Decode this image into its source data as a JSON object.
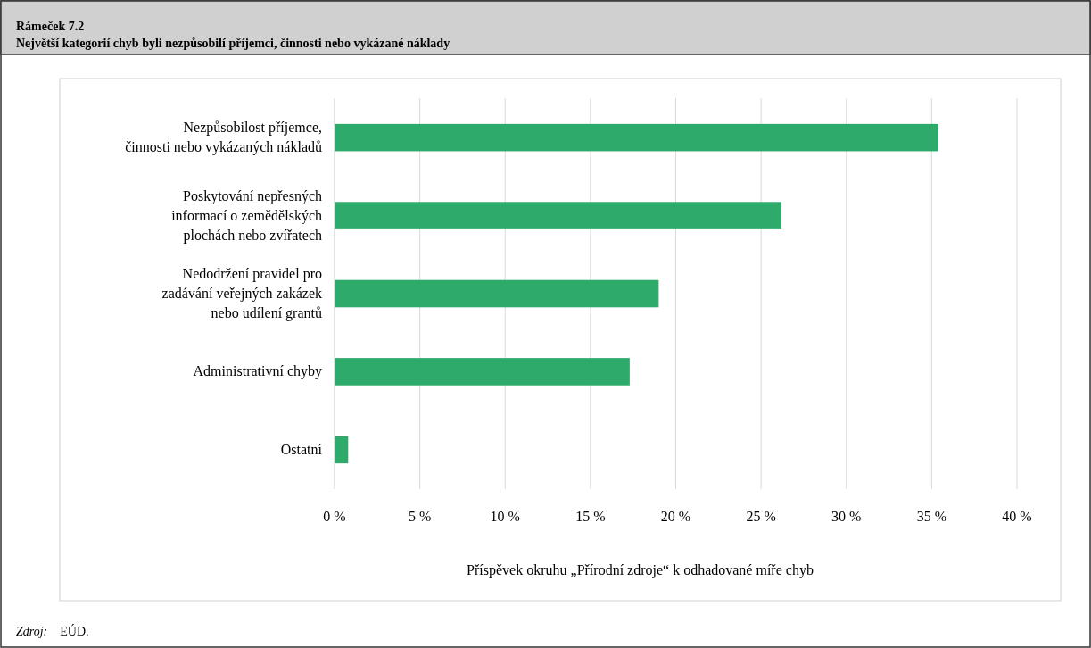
{
  "chart_data": {
    "type": "bar",
    "orientation": "horizontal",
    "title": "Rámeček 7.2",
    "subtitle": "Největší kategorií chyb byli nezpůsobilí příjemci, činnosti nebo vykázané náklady",
    "categories": [
      "Nezpůsobilost příjemce,\nčinnosti nebo vykázaných nákladů",
      "Poskytování nepřesných\ninformací o zemědělských\nplochách nebo zvířatech",
      "Nedodržení pravidel pro\nzadávání veřejných zakázek\nnebo udílení grantů",
      "Administrativní chyby",
      "Ostatní"
    ],
    "values": [
      35.4,
      26.2,
      19.0,
      17.3,
      0.8
    ],
    "color": "#2eaa6a",
    "xlim": [
      0,
      40
    ],
    "xticks": [
      {
        "value": 0,
        "label": "0 %"
      },
      {
        "value": 5,
        "label": "5 %"
      },
      {
        "value": 10,
        "label": "10 %"
      },
      {
        "value": 15,
        "label": "15 %"
      },
      {
        "value": 20,
        "label": "20 %"
      },
      {
        "value": 25,
        "label": "25 %"
      },
      {
        "value": 30,
        "label": "30 %"
      },
      {
        "value": 35,
        "label": "35 %"
      },
      {
        "value": 40,
        "label": "40 %"
      }
    ],
    "grid": "x",
    "xlabel": "Příspěvek okruhu „Přírodní zdroje“ k odhadované míře chyb",
    "annotations": [
      "Zdroj: EÚD."
    ]
  }
}
